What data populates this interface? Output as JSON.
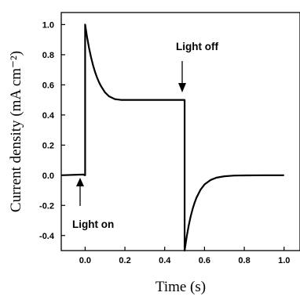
{
  "chart_data": {
    "type": "line",
    "xlabel": "Time (s)",
    "ylabel": "Current density (mA cm⁻²)",
    "xlim": [
      -0.12,
      1.08
    ],
    "ylim": [
      -0.5,
      1.08
    ],
    "xticks": [
      0.0,
      0.2,
      0.4,
      0.6,
      0.8,
      1.0
    ],
    "xtick_labels": [
      "0.0",
      "0.2",
      "0.4",
      "0.6",
      "0.8",
      "1.0"
    ],
    "yticks": [
      -0.4,
      -0.2,
      0.0,
      0.2,
      0.4,
      0.6,
      0.8,
      1.0
    ],
    "ytick_labels": [
      "-0.4",
      "-0.2",
      "0.0",
      "0.2",
      "0.4",
      "0.6",
      "0.8",
      "1.0"
    ],
    "grid": false,
    "annotations": [
      {
        "text": "Light on",
        "x": 0.0,
        "y": 0.0
      },
      {
        "text": "Light off",
        "x": 0.5,
        "y": 0.5
      }
    ],
    "series": [
      {
        "x": [
          -0.12,
          -0.01,
          0.0,
          0.0,
          0.01,
          0.02,
          0.03,
          0.04,
          0.05,
          0.06,
          0.07,
          0.08,
          0.1,
          0.12,
          0.15,
          0.18,
          0.22,
          0.27,
          0.33,
          0.4,
          0.5,
          0.5,
          0.51,
          0.52,
          0.53,
          0.54,
          0.55,
          0.56,
          0.58,
          0.6,
          0.63,
          0.66,
          0.7,
          0.75,
          0.8,
          0.9,
          1.0
        ],
        "y": [
          0.0,
          0.005,
          0.0,
          1.0,
          0.915,
          0.842,
          0.781,
          0.729,
          0.685,
          0.648,
          0.617,
          0.591,
          0.55,
          0.524,
          0.505,
          0.5,
          0.5,
          0.5,
          0.5,
          0.5,
          0.5,
          -0.5,
          -0.412,
          -0.338,
          -0.276,
          -0.225,
          -0.183,
          -0.148,
          -0.096,
          -0.061,
          -0.032,
          -0.016,
          -0.007,
          -0.002,
          -0.001,
          0.0,
          0.0
        ]
      }
    ]
  }
}
